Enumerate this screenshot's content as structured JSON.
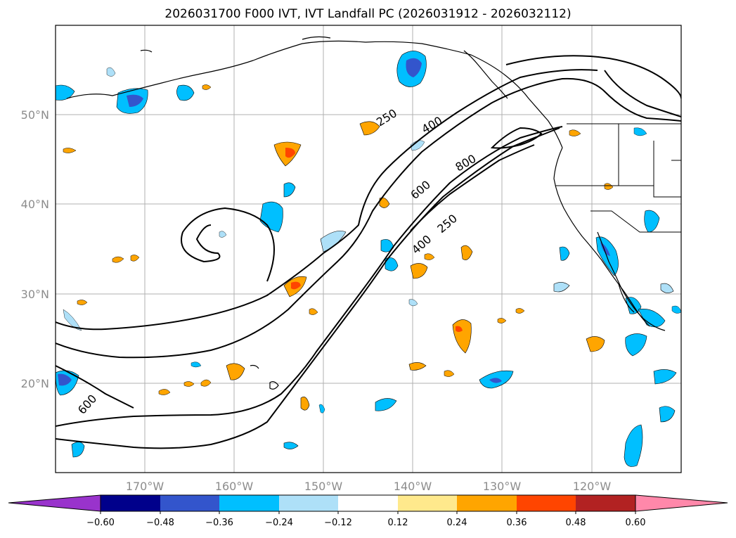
{
  "title": "2026031700 F000 IVT, IVT Landfall PC (2026031912 - 2026032112)",
  "axes": {
    "lon_labels": [
      "170°W",
      "160°W",
      "150°W",
      "140°W",
      "130°W",
      "120°W"
    ],
    "lat_labels": [
      "50°N",
      "40°N",
      "30°N",
      "20°N"
    ]
  },
  "contour_labels": [
    "250",
    "400",
    "800",
    "600",
    "250",
    "400",
    "600"
  ],
  "colorbar": {
    "labels": [
      "−0.60",
      "−0.48",
      "−0.36",
      "−0.24",
      "−0.12",
      "0.12",
      "0.24",
      "0.36",
      "0.48",
      "0.60"
    ],
    "colors": [
      "#9933cc",
      "#00008b",
      "#3355cc",
      "#00bfff",
      "#aee0f8",
      "#ffffff",
      "#ffe98c",
      "#ffa500",
      "#ff4500",
      "#b22222",
      "#ff88aa",
      "#ff88aa"
    ]
  }
}
